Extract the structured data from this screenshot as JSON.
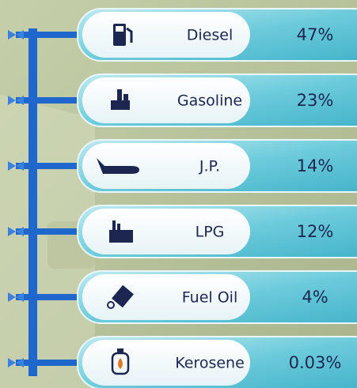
{
  "items": [
    {
      "label": "Diesel",
      "value": "47%"
    },
    {
      "label": "Gasoline",
      "value": "23%"
    },
    {
      "label": "J.P.",
      "value": "14%"
    },
    {
      "label": "LPG",
      "value": "12%"
    },
    {
      "label": "Fuel Oil",
      "value": "4%"
    },
    {
      "label": "Kerosene",
      "value": "0.03%"
    }
  ]
}
